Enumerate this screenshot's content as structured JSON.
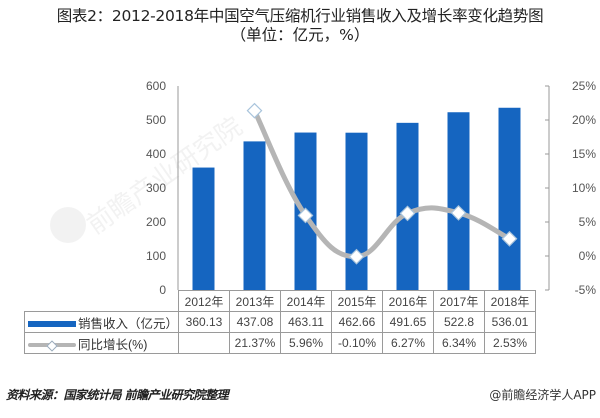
{
  "title": "图表2：2012-2018年中国空气压缩机行业销售收入及增长率变化趋势图",
  "subtitle": "（单位：亿元，%）",
  "legend": {
    "bar_label": "销售收入（亿元）",
    "line_label": "同比增长(%)"
  },
  "left_axis_ticks": [
    "600",
    "500",
    "400",
    "300",
    "200",
    "100",
    "0"
  ],
  "right_axis_ticks": [
    "25%",
    "20%",
    "15%",
    "10%",
    "5%",
    "0%",
    "-5%"
  ],
  "table": {
    "years": [
      "2012年",
      "2013年",
      "2014年",
      "2015年",
      "2016年",
      "2017年",
      "2018年"
    ],
    "revenue": [
      "360.13",
      "437.08",
      "463.11",
      "462.66",
      "491.65",
      "522.8",
      "536.01"
    ],
    "growth": [
      "",
      "21.37%",
      "5.96%",
      "-0.10%",
      "6.27%",
      "6.34%",
      "2.53%"
    ]
  },
  "footer": {
    "source": "资料来源：国家统计局 前瞻产业研究院整理",
    "credit": "@前瞻经济学人APP"
  },
  "colors": {
    "bar": "#1565c0",
    "line": "#b5b5b5",
    "marker_fill": "#ffffff",
    "marker_stroke": "#a9c4dc"
  },
  "chart_data": {
    "type": "bar",
    "title": "2012-2018年中国空气压缩机行业销售收入及增长率变化趋势图",
    "subtitle": "（单位：亿元，%）",
    "categories": [
      "2012年",
      "2013年",
      "2014年",
      "2015年",
      "2016年",
      "2017年",
      "2018年"
    ],
    "series": [
      {
        "name": "销售收入（亿元）",
        "type": "bar",
        "axis": "left",
        "values": [
          360.13,
          437.08,
          463.11,
          462.66,
          491.65,
          522.8,
          536.01
        ]
      },
      {
        "name": "同比增长(%)",
        "type": "line",
        "axis": "right",
        "smooth": true,
        "values": [
          null,
          21.37,
          5.96,
          -0.1,
          6.27,
          6.34,
          2.53
        ]
      }
    ],
    "ylabel_left": "",
    "ylim_left": [
      0,
      600
    ],
    "ylabel_right": "",
    "ylim_right": [
      -5,
      25
    ],
    "grid": false,
    "legend_position": "data-table"
  }
}
